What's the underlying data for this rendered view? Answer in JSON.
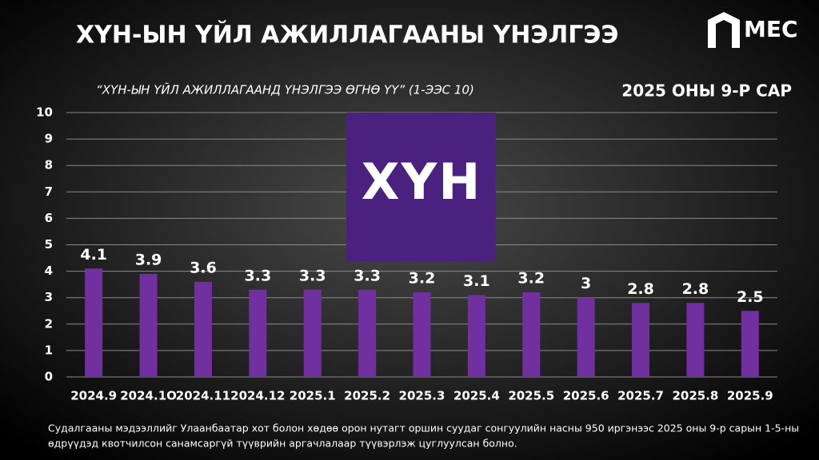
{
  "chart_data": {
    "type": "bar",
    "title": "ХҮН-ЫН ҮЙЛ АЖИЛЛАГААНЫ ҮНЭЛГЭЭ",
    "subtitle": "“ХҮН-ЫН ҮЙЛ АЖИЛЛАГААНД ҮНЭЛГЭЭ ӨГНӨ ҮҮ” (1-ЭЭС 10)",
    "period": "2025 ОНЫ 9-Р САР",
    "logo": "МЕС",
    "brand": "ХҮН",
    "note": [
      "Судалгааны мэдээллийг Улаанбаатар хот болон хөдөө орон нутагт оршин суудаг сонгуулийн насны 950 иргэнээс 2025 оны 9-р сарын 1-5-ны",
      "өдрүүдэд квотчилсон санамсаргүй түүврийн аргачлалаар түүвэрлэж цуглуулсан болно."
    ],
    "categories": [
      "2024.9",
      "2024.1O",
      "2024.11",
      "2024.12",
      "2025.1",
      "2025.2",
      "2025.3",
      "2025.4",
      "2025.5",
      "2025.6",
      "2025.7",
      "2025.8",
      "2025.9"
    ],
    "values": [
      4.1,
      3.9,
      3.6,
      3.3,
      3.3,
      3.3,
      3.2,
      3.1,
      3.2,
      3,
      2.8,
      2.8,
      2.5
    ],
    "color": "#7030a0",
    "ylim": [
      0,
      10
    ],
    "yticks": [
      0,
      1,
      2,
      3,
      4,
      5,
      6,
      7,
      8,
      9,
      10
    ],
    "grid": true
  }
}
